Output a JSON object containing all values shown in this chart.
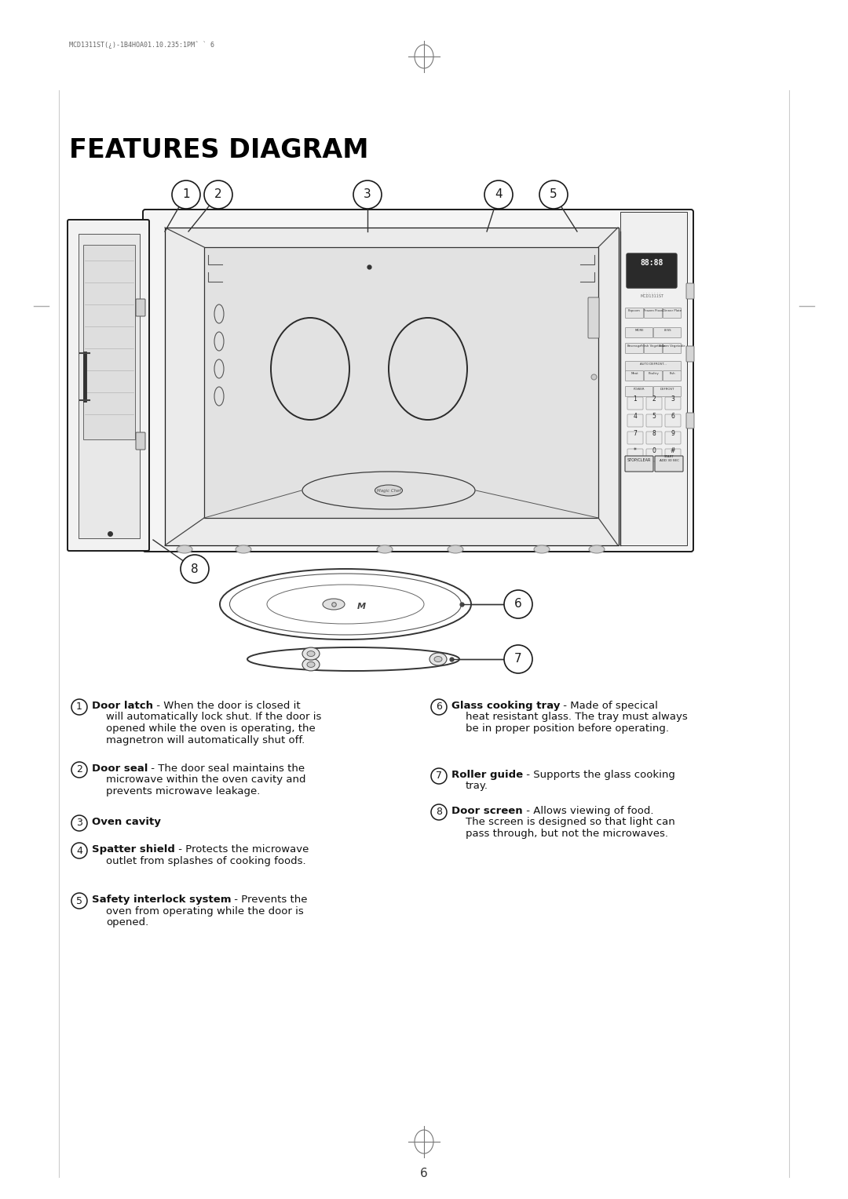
{
  "title": "FEATURES DIAGRAM",
  "bg_color": "#ffffff",
  "text_color": "#000000",
  "title_fontsize": 24,
  "body_fontsize": 9.5,
  "page_number": "6",
  "items_left": [
    {
      "num": "1",
      "bold": "Door latch",
      "text": " - When the door is closed it\nwill automatically lock shut. If the door is\nopened while the oven is operating, the\nmagnetron will automatically shut off."
    },
    {
      "num": "2",
      "bold": "Door seal",
      "text": " - The door seal maintains the\nmicrowave within the oven cavity and\nprevents microwave leakage."
    },
    {
      "num": "3",
      "bold": "Oven cavity",
      "text": ""
    },
    {
      "num": "4",
      "bold": "Spatter shield",
      "text": " - Protects the microwave\noutlet from splashes of cooking foods."
    },
    {
      "num": "5",
      "bold": "Safety interlock system",
      "text": " - Prevents the\noven from operating while the door is\nopened."
    }
  ],
  "items_right": [
    {
      "num": "6",
      "bold": "Glass cooking tray",
      "text": " - Made of specical\nheat resistant glass. The tray must always\nbe in proper position before operating."
    },
    {
      "num": "7",
      "bold": "Roller guide",
      "text": " - Supports the glass cooking\ntray."
    },
    {
      "num": "8",
      "bold": "Door screen",
      "text": " - Allows viewing of food.\nThe screen is designed so that light can\npass through, but not the microwaves."
    }
  ]
}
